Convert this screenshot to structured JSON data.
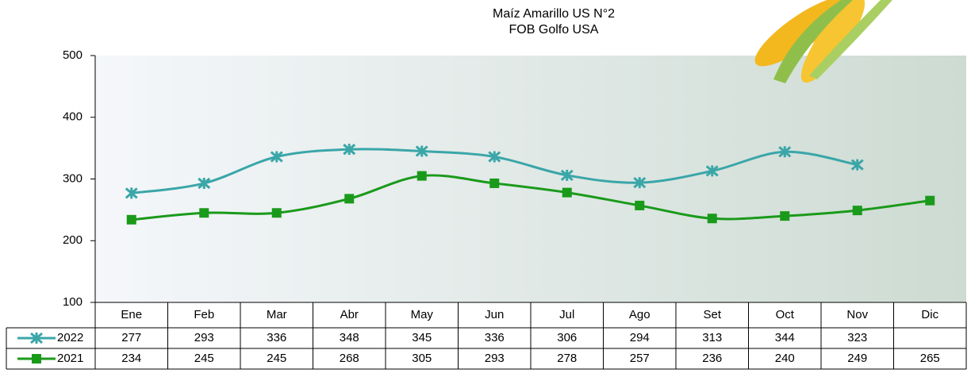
{
  "chart_data": {
    "type": "line",
    "title": "Maíz Amarillo US N°2",
    "subtitle": "FOB Golfo USA",
    "categories": [
      "Ene",
      "Feb",
      "Mar",
      "Abr",
      "May",
      "Jun",
      "Jul",
      "Ago",
      "Set",
      "Oct",
      "Nov",
      "Dic"
    ],
    "series": [
      {
        "name": "2022",
        "color": "#3aa6a8",
        "marker": "star",
        "values": [
          277,
          293,
          336,
          348,
          345,
          336,
          306,
          294,
          313,
          344,
          323,
          null
        ]
      },
      {
        "name": "2021",
        "color": "#1a9a1a",
        "marker": "square",
        "values": [
          234,
          245,
          245,
          268,
          305,
          293,
          278,
          257,
          236,
          240,
          249,
          265
        ]
      }
    ],
    "ylim": [
      100,
      500
    ],
    "yticks": [
      100,
      200,
      300,
      400,
      500
    ],
    "smooth": true,
    "data_table": true
  }
}
